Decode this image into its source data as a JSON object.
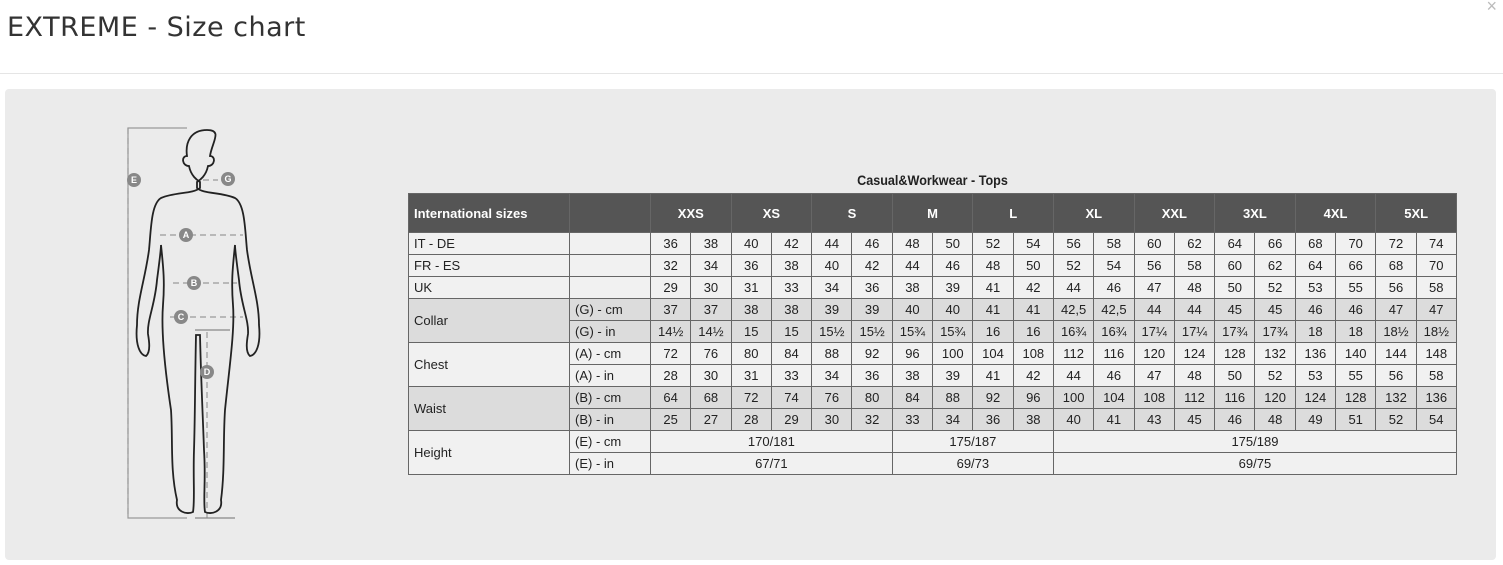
{
  "modal": {
    "title": "EXTREME - Size chart",
    "close_label": "×"
  },
  "figure": {
    "labels": {
      "E": "E",
      "G": "G",
      "A": "A",
      "B": "B",
      "C": "C",
      "D": "D"
    }
  },
  "chart": {
    "title": "Casual&Workwear - Tops",
    "header_label": "International sizes",
    "sizes": [
      "XXS",
      "XS",
      "S",
      "M",
      "L",
      "XL",
      "XXL",
      "3XL",
      "4XL",
      "5XL"
    ],
    "simple_rows": [
      {
        "label": "IT - DE",
        "values": [
          "36",
          "38",
          "40",
          "42",
          "44",
          "46",
          "48",
          "50",
          "52",
          "54",
          "56",
          "58",
          "60",
          "62",
          "64",
          "66",
          "68",
          "70",
          "72",
          "74"
        ]
      },
      {
        "label": "FR - ES",
        "values": [
          "32",
          "34",
          "36",
          "38",
          "40",
          "42",
          "44",
          "46",
          "48",
          "50",
          "52",
          "54",
          "56",
          "58",
          "60",
          "62",
          "64",
          "66",
          "68",
          "70"
        ]
      },
      {
        "label": "UK",
        "values": [
          "29",
          "30",
          "31",
          "33",
          "34",
          "36",
          "38",
          "39",
          "41",
          "42",
          "44",
          "46",
          "47",
          "48",
          "50",
          "52",
          "53",
          "55",
          "56",
          "58"
        ]
      }
    ],
    "groups": [
      {
        "label": "Collar",
        "shade": true,
        "rows": [
          {
            "unit": "(G) - cm",
            "values": [
              "37",
              "37",
              "38",
              "38",
              "39",
              "39",
              "40",
              "40",
              "41",
              "41",
              "42,5",
              "42,5",
              "44",
              "44",
              "45",
              "45",
              "46",
              "46",
              "47",
              "47"
            ]
          },
          {
            "unit": "(G)  - in",
            "values": [
              "14½",
              "14½",
              "15",
              "15",
              "15½",
              "15½",
              "15¾",
              "15¾",
              "16",
              "16",
              "16¾",
              "16¾",
              "17¼",
              "17¼",
              "17¾",
              "17¾",
              "18",
              "18",
              "18½",
              "18½"
            ]
          }
        ]
      },
      {
        "label": "Chest",
        "shade": false,
        "rows": [
          {
            "unit": "(A) - cm",
            "values": [
              "72",
              "76",
              "80",
              "84",
              "88",
              "92",
              "96",
              "100",
              "104",
              "108",
              "112",
              "116",
              "120",
              "124",
              "128",
              "132",
              "136",
              "140",
              "144",
              "148"
            ]
          },
          {
            "unit": "(A) - in",
            "values": [
              "28",
              "30",
              "31",
              "33",
              "34",
              "36",
              "38",
              "39",
              "41",
              "42",
              "44",
              "46",
              "47",
              "48",
              "50",
              "52",
              "53",
              "55",
              "56",
              "58"
            ]
          }
        ]
      },
      {
        "label": "Waist",
        "shade": true,
        "rows": [
          {
            "unit": "(B) - cm",
            "values": [
              "64",
              "68",
              "72",
              "74",
              "76",
              "80",
              "84",
              "88",
              "92",
              "96",
              "100",
              "104",
              "108",
              "112",
              "116",
              "120",
              "124",
              "128",
              "132",
              "136"
            ]
          },
          {
            "unit": "(B) - in",
            "values": [
              "25",
              "27",
              "28",
              "29",
              "30",
              "32",
              "33",
              "34",
              "36",
              "38",
              "40",
              "41",
              "43",
              "45",
              "46",
              "48",
              "49",
              "51",
              "52",
              "54"
            ]
          }
        ]
      }
    ],
    "height": {
      "label": "Height",
      "rows": [
        {
          "unit": "(E) - cm",
          "spans": [
            {
              "cols": 6,
              "value": "170/181"
            },
            {
              "cols": 4,
              "value": "175/187"
            },
            {
              "cols": 10,
              "value": "175/189"
            }
          ]
        },
        {
          "unit": "(E) - in",
          "spans": [
            {
              "cols": 6,
              "value": "67/71"
            },
            {
              "cols": 4,
              "value": "69/73"
            },
            {
              "cols": 10,
              "value": "69/75"
            }
          ]
        }
      ]
    }
  }
}
